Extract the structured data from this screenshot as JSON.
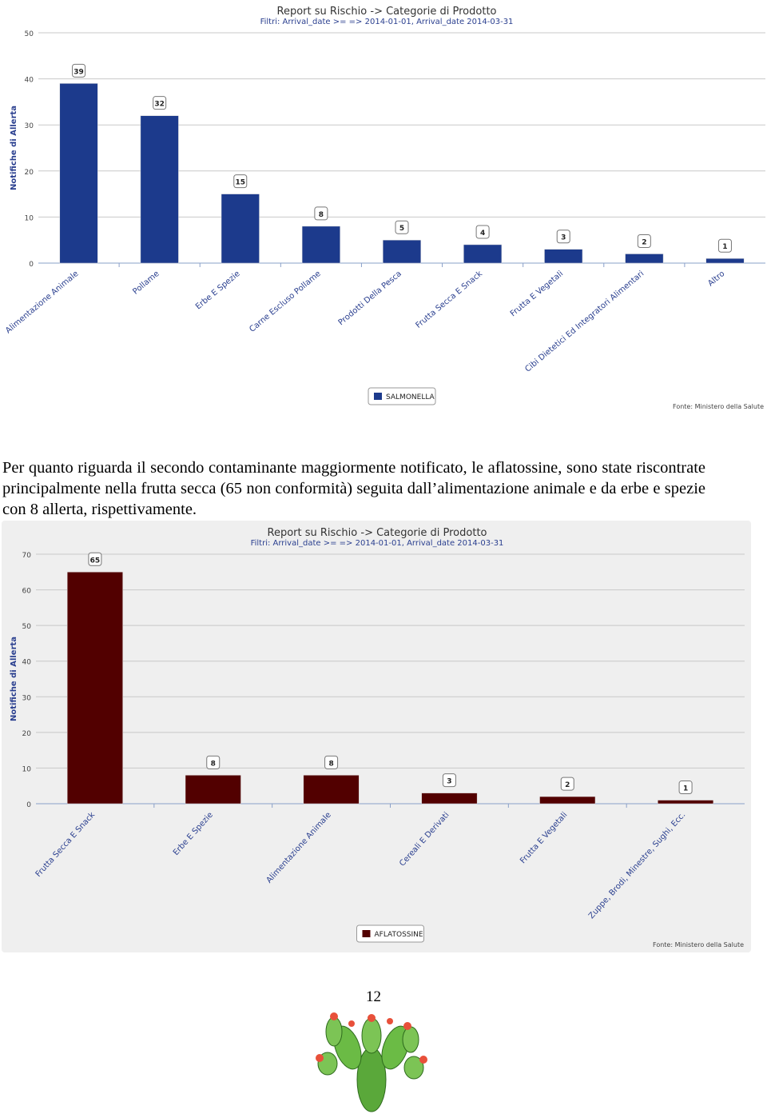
{
  "chart_data": [
    {
      "type": "bar",
      "title": "Report su Rischio -> Categorie di Prodotto",
      "subtitle": "Filtri: Arrival_date >= => 2014-01-01, Arrival_date 2014-03-31",
      "y_label": "Notifiche di Allerta",
      "categories": [
        "Alimentazione Animale",
        "Pollame",
        "Erbe E Spezie",
        "Carne Escluso Pollame",
        "Prodotti Della Pesca",
        "Frutta Secca E Snack",
        "Frutta E Vegetali",
        "Cibi Dietetici Ed Integratori Alimentari",
        "Altro"
      ],
      "series": [
        {
          "name": "SALMONELLA",
          "color": "#1c3a8c",
          "values": [
            39,
            32,
            15,
            8,
            5,
            4,
            3,
            2,
            1
          ]
        }
      ],
      "ylim": [
        0,
        50
      ],
      "yticks": [
        0,
        10,
        20,
        30,
        40,
        50
      ],
      "grid": true,
      "source": "Fonte: Ministero della Salute"
    },
    {
      "type": "bar",
      "title": "Report su Rischio -> Categorie di Prodotto",
      "subtitle": "Filtri: Arrival_date >= => 2014-01-01, Arrival_date 2014-03-31",
      "y_label": "Notifiche di Allerta",
      "categories": [
        "Frutta Secca E Snack",
        "Erbe E Spezie",
        "Alimentazione Animale",
        "Cereali E Derivati",
        "Frutta E Vegetali",
        "Zuppe, Brodi, Minestre, Sughi, Ecc."
      ],
      "series": [
        {
          "name": "AFLATOSSINE",
          "color": "#520000",
          "values": [
            65,
            8,
            8,
            3,
            2,
            1
          ]
        }
      ],
      "ylim": [
        0,
        70
      ],
      "yticks": [
        0,
        10,
        20,
        30,
        40,
        50,
        60,
        70
      ],
      "grid": true,
      "source": "Fonte: Ministero della Salute"
    }
  ],
  "paragraph": "Per quanto riguarda il secondo contaminante maggiormente notificato, le aflatossine, sono state riscontrate principalmente nella frutta secca (65 non conformità) seguita dall’alimentazione animale e da erbe e spezie con 8 allerta, rispettivamente.",
  "page_number": "12"
}
